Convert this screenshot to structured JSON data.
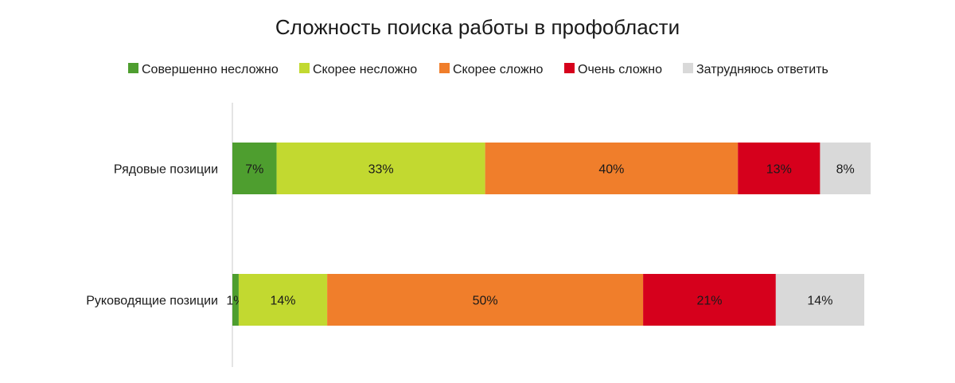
{
  "chart_data": {
    "type": "bar",
    "orientation": "horizontal",
    "stacked": true,
    "title": "Сложность поиска работы в профобласти",
    "categories": [
      "Рядовые позиции",
      "Руководящие позиции"
    ],
    "series": [
      {
        "name": "Совершенно несложно",
        "color": "#4e9e2f",
        "values": [
          7,
          1
        ],
        "labels": [
          "7%",
          "1%"
        ]
      },
      {
        "name": "Скорее несложно",
        "color": "#c2d930",
        "values": [
          33,
          14
        ],
        "labels": [
          "33%",
          "14%"
        ]
      },
      {
        "name": "Скорее сложно",
        "color": "#f07e2b",
        "values": [
          40,
          50
        ],
        "labels": [
          "40%",
          "50%"
        ]
      },
      {
        "name": "Очень сложно",
        "color": "#d6001c",
        "values": [
          13,
          21
        ],
        "labels": [
          "13%",
          "21%"
        ]
      },
      {
        "name": "Затрудняюсь ответить",
        "color": "#d9d9d9",
        "values": [
          8,
          14
        ],
        "labels": [
          "8%",
          "14%"
        ]
      }
    ],
    "xlim": [
      0,
      100
    ],
    "legend_position": "top",
    "grid": false
  }
}
